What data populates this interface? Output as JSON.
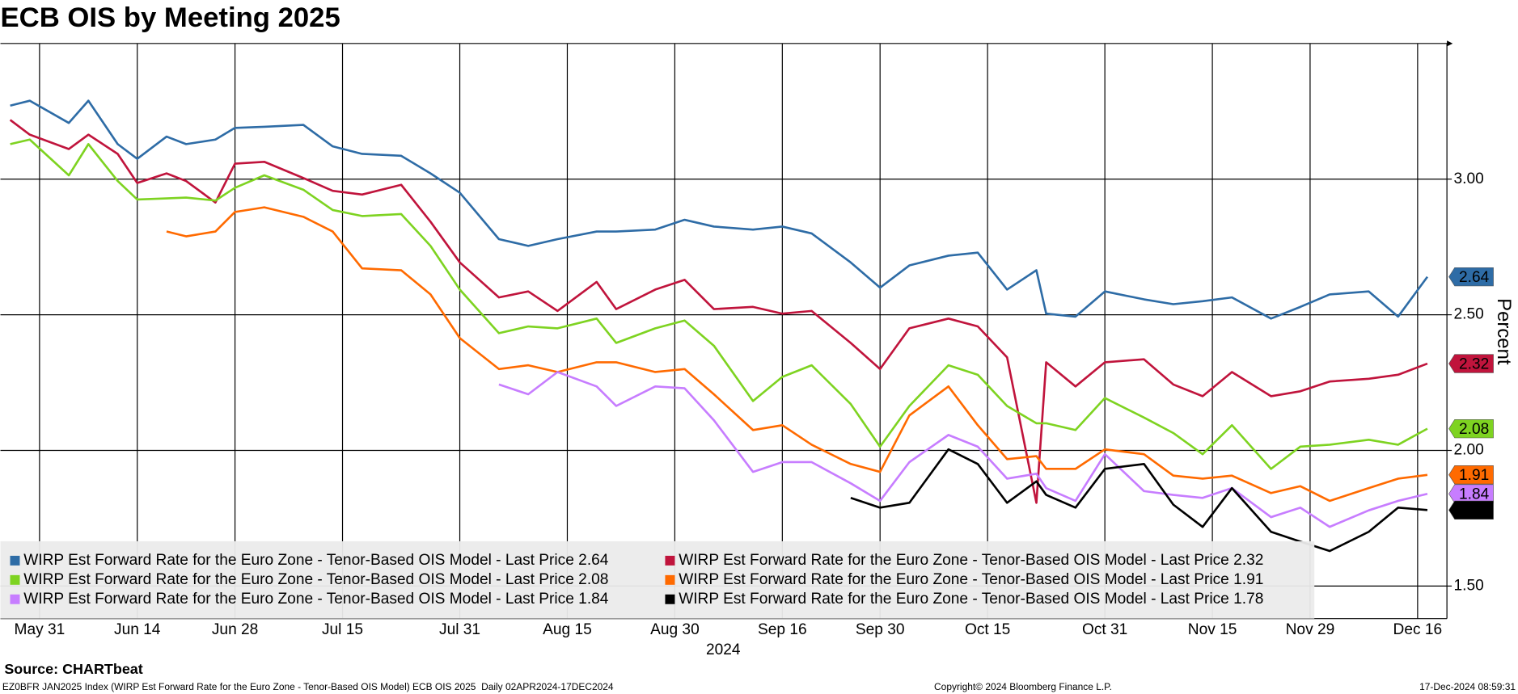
{
  "chart_data": {
    "type": "line",
    "title": "ECB OIS by Meeting 2025",
    "y_label": "Percent",
    "x_label": "2024",
    "source": "Source: CHARTbeat",
    "footer_left": "EZ0BFR JAN2025 Index (WIRP Est Forward Rate for the Euro Zone - Tenor-Based OIS Model) ECB OIS 2025  Daily 02APR2024-17DEC2024",
    "copyright": "Copyright© 2024 Bloomberg Finance L.P.",
    "timestamp": "17-Dec-2024 08:59:31",
    "grid": true,
    "legend_position": "bottom-left",
    "xlim": [
      "2024-05-27",
      "2024-12-19"
    ],
    "xticks": [
      {
        "value": "2024-05-31",
        "label": "May 31"
      },
      {
        "value": "2024-06-14",
        "label": "Jun 14"
      },
      {
        "value": "2024-06-28",
        "label": "Jun 28"
      },
      {
        "value": "2024-07-15",
        "label": "Jul 15"
      },
      {
        "value": "2024-07-31",
        "label": "Jul 31"
      },
      {
        "value": "2024-08-15",
        "label": "Aug 15"
      },
      {
        "value": "2024-08-30",
        "label": "Aug 30"
      },
      {
        "value": "2024-09-16",
        "label": "Sep 16"
      },
      {
        "value": "2024-09-30",
        "label": "Sep 30"
      },
      {
        "value": "2024-10-15",
        "label": "Oct 15"
      },
      {
        "value": "2024-10-31",
        "label": "Oct 31"
      },
      {
        "value": "2024-11-15",
        "label": "Nov 15"
      },
      {
        "value": "2024-11-29",
        "label": "Nov 29"
      },
      {
        "value": "2024-12-16",
        "label": "Dec 16"
      }
    ],
    "ylim": [
      1.38,
      3.5
    ],
    "yticks": [
      {
        "value": 1.5,
        "label": "1.50"
      },
      {
        "value": 2,
        "label": "2.00"
      },
      {
        "value": 2.5,
        "label": "2.50"
      },
      {
        "value": 3,
        "label": "3.00"
      }
    ],
    "x": [
      "2024-05-28",
      "2024-05-30",
      "2024-06-05",
      "2024-06-07",
      "2024-06-12",
      "2024-06-14",
      "2024-06-19",
      "2024-06-21",
      "2024-06-26",
      "2024-06-28",
      "2024-07-03",
      "2024-07-09",
      "2024-07-12",
      "2024-07-17",
      "2024-07-23",
      "2024-07-26",
      "2024-07-31",
      "2024-08-06",
      "2024-08-09",
      "2024-08-14",
      "2024-08-20",
      "2024-08-22",
      "2024-08-28",
      "2024-09-02",
      "2024-09-05",
      "2024-09-11",
      "2024-09-16",
      "2024-09-19",
      "2024-09-25",
      "2024-09-30",
      "2024-10-03",
      "2024-10-09",
      "2024-10-14",
      "2024-10-17",
      "2024-10-22",
      "2024-10-23",
      "2024-10-28",
      "2024-10-31",
      "2024-11-06",
      "2024-11-11",
      "2024-11-14",
      "2024-11-19",
      "2024-11-25",
      "2024-11-28",
      "2024-12-03",
      "2024-12-09",
      "2024-12-12",
      "2024-12-17"
    ],
    "series": [
      {
        "name": "WIRP Est Forward Rate for the Euro Zone - Tenor-Based OIS Model - Last Price 2.64",
        "color": "#2e6ca6",
        "values": [
          3.271,
          3.289,
          3.207,
          3.289,
          3.129,
          3.075,
          3.157,
          3.129,
          3.146,
          3.189,
          3.193,
          3.2,
          3.121,
          3.093,
          3.086,
          3.021,
          2.95,
          2.779,
          2.754,
          2.779,
          2.807,
          2.807,
          2.814,
          2.85,
          2.825,
          2.814,
          2.825,
          2.8,
          2.693,
          2.6,
          2.682,
          2.718,
          2.729,
          2.593,
          2.664,
          2.504,
          2.493,
          2.586,
          2.557,
          2.539,
          2.55,
          2.564,
          2.486,
          2.529,
          2.575,
          2.586,
          2.493,
          2.64
        ]
      },
      {
        "name": "WIRP Est Forward Rate for the Euro Zone - Tenor-Based OIS Model - Last Price 2.32",
        "color": "#c0143c",
        "values": [
          3.218,
          3.164,
          3.111,
          3.164,
          3.093,
          2.986,
          3.021,
          2.993,
          2.914,
          3.057,
          3.064,
          3.004,
          2.957,
          2.943,
          2.979,
          2.843,
          2.693,
          2.564,
          2.586,
          2.514,
          2.621,
          2.521,
          2.593,
          2.629,
          2.521,
          2.529,
          2.504,
          2.514,
          2.396,
          2.3,
          2.45,
          2.486,
          2.457,
          2.343,
          1.807,
          2.325,
          2.236,
          2.325,
          2.336,
          2.243,
          2.2,
          2.289,
          2.2,
          2.218,
          2.254,
          2.264,
          2.279,
          2.32
        ]
      },
      {
        "name": "WIRP Est Forward Rate for the Euro Zone - Tenor-Based OIS Model - Last Price 2.08",
        "color": "#7ed321",
        "values": [
          3.129,
          3.146,
          3.014,
          3.129,
          2.993,
          2.925,
          2.929,
          2.932,
          2.921,
          2.968,
          3.014,
          2.961,
          2.886,
          2.864,
          2.871,
          2.754,
          2.593,
          2.432,
          2.457,
          2.45,
          2.486,
          2.396,
          2.45,
          2.479,
          2.386,
          2.182,
          2.271,
          2.314,
          2.171,
          2.014,
          2.164,
          2.314,
          2.279,
          2.164,
          2.1,
          2.1,
          2.075,
          2.193,
          2.121,
          2.064,
          1.986,
          2.093,
          1.932,
          2.014,
          2.021,
          2.039,
          2.021,
          2.08
        ]
      },
      {
        "name": "WIRP Est Forward Rate for the Euro Zone - Tenor-Based OIS Model - Last Price 1.91",
        "color": "#ff6a00",
        "values": [
          null,
          null,
          null,
          null,
          null,
          null,
          2.807,
          2.789,
          2.807,
          2.879,
          2.896,
          2.861,
          2.807,
          2.671,
          2.664,
          2.575,
          2.414,
          2.3,
          2.314,
          2.289,
          2.325,
          2.325,
          2.289,
          2.3,
          2.207,
          2.075,
          2.093,
          2.021,
          1.95,
          1.921,
          2.129,
          2.236,
          2.093,
          1.968,
          1.979,
          1.932,
          1.932,
          2.004,
          1.986,
          1.907,
          1.896,
          1.907,
          1.843,
          1.868,
          1.814,
          1.861,
          1.896,
          1.91
        ]
      },
      {
        "name": "WIRP Est Forward Rate for the Euro Zone - Tenor-Based OIS Model - Last Price 1.84",
        "color": "#c77dff",
        "values": [
          null,
          null,
          null,
          null,
          null,
          null,
          null,
          null,
          null,
          null,
          null,
          null,
          null,
          null,
          null,
          null,
          null,
          2.243,
          2.207,
          2.289,
          2.236,
          2.164,
          2.236,
          2.229,
          2.111,
          1.921,
          1.957,
          1.957,
          1.879,
          1.814,
          1.957,
          2.057,
          2.014,
          1.896,
          1.914,
          1.861,
          1.814,
          1.986,
          1.85,
          1.836,
          1.825,
          1.861,
          1.754,
          1.789,
          1.718,
          1.779,
          1.814,
          1.84
        ]
      },
      {
        "name": "WIRP Est Forward Rate for the Euro Zone - Tenor-Based OIS Model - Last Price 1.78",
        "color": "#000000",
        "values": [
          null,
          null,
          null,
          null,
          null,
          null,
          null,
          null,
          null,
          null,
          null,
          null,
          null,
          null,
          null,
          null,
          null,
          null,
          null,
          null,
          null,
          null,
          null,
          null,
          null,
          null,
          null,
          null,
          1.825,
          1.789,
          1.807,
          2.004,
          1.95,
          1.807,
          1.886,
          1.836,
          1.789,
          1.932,
          1.95,
          1.8,
          1.718,
          1.861,
          1.7,
          1.664,
          1.629,
          1.7,
          1.789,
          1.78
        ]
      }
    ]
  }
}
